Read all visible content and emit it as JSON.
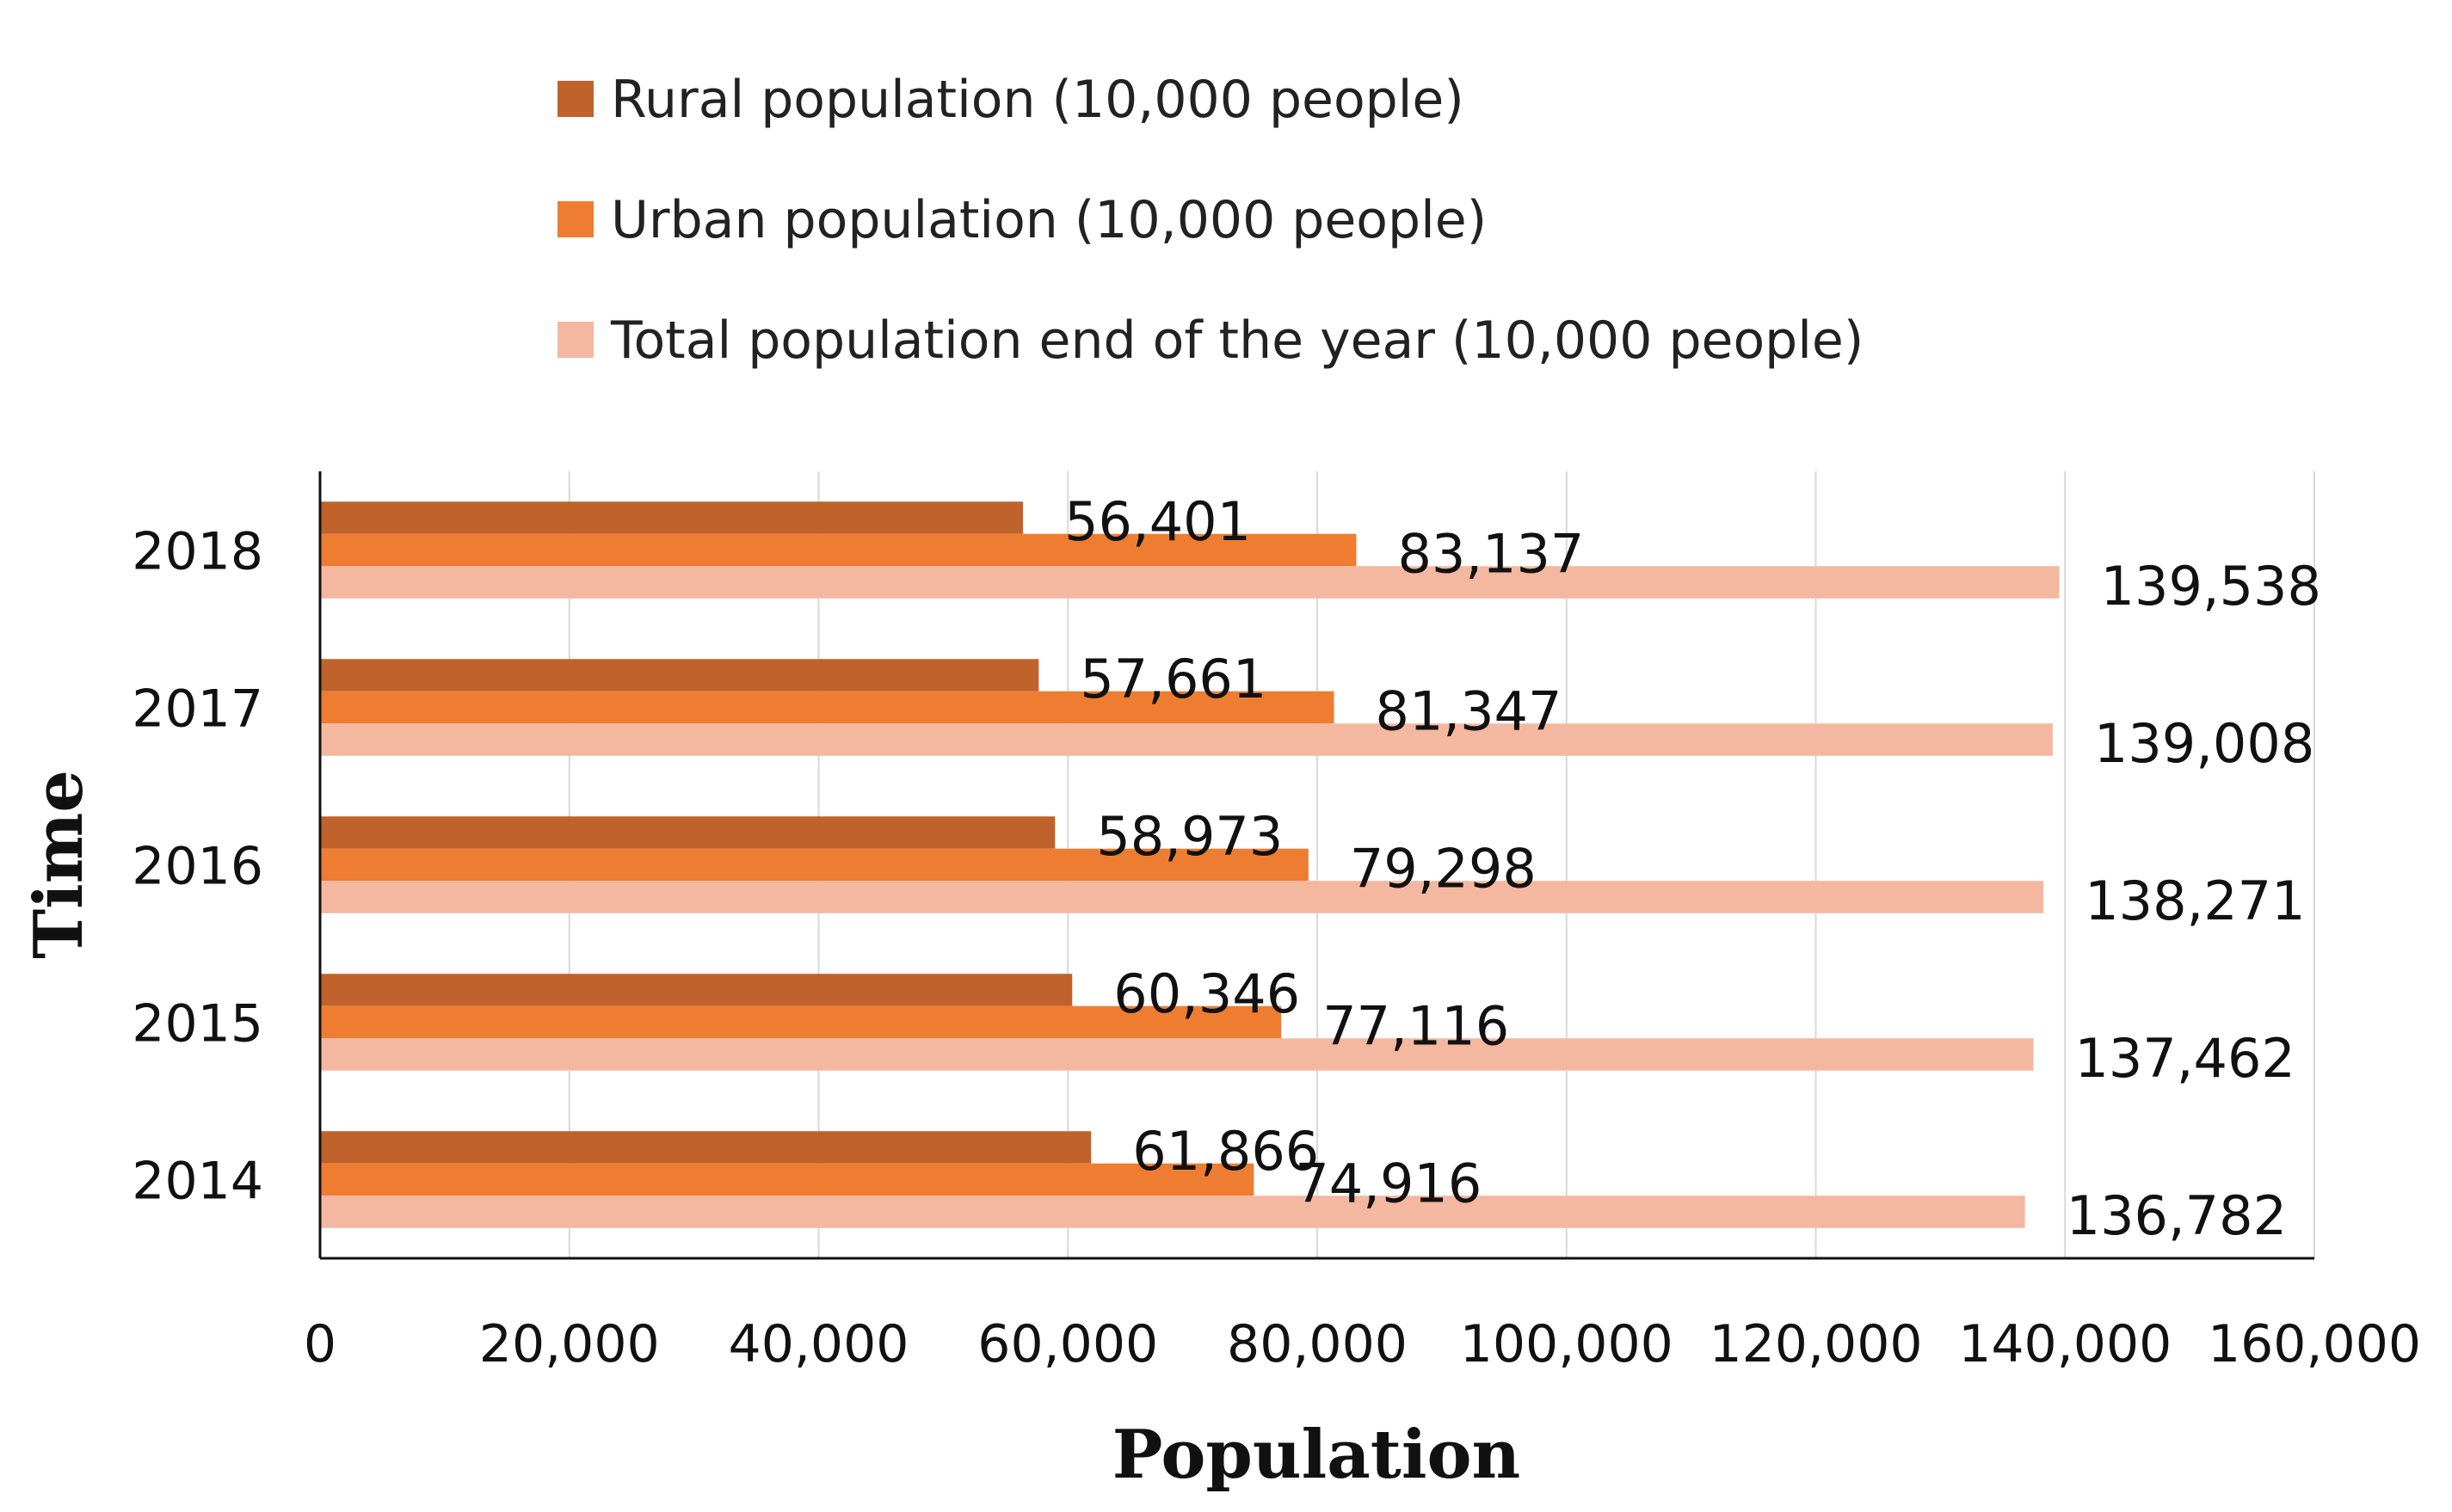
{
  "chart_data": {
    "type": "bar",
    "orientation": "horizontal",
    "categories": [
      "2014",
      "2015",
      "2016",
      "2017",
      "2018"
    ],
    "series": [
      {
        "name": "Rural population (10,000 people)",
        "color": "#C0622B",
        "values": [
          61866,
          60346,
          58973,
          57661,
          56401
        ],
        "labels": [
          "61,866",
          "60,346",
          "58,973",
          "57,661",
          "56,401"
        ]
      },
      {
        "name": "Urban population (10,000 people)",
        "color": "#EE7D31",
        "values": [
          74916,
          77116,
          79298,
          81347,
          83137
        ],
        "labels": [
          "74,916",
          "77,116",
          "79,298",
          "81,347",
          "83,137"
        ]
      },
      {
        "name": "Total population end of the year (10,000 people)",
        "color": "#F4B7A0",
        "values": [
          136782,
          137462,
          138271,
          139008,
          139538
        ],
        "labels": [
          "136,782",
          "137,462",
          "138,271",
          "139,008",
          "139,538"
        ]
      }
    ],
    "xlabel": "Population",
    "ylabel": "Time",
    "xlim": [
      0,
      160000
    ],
    "xticks": [
      0,
      20000,
      40000,
      60000,
      80000,
      100000,
      120000,
      140000,
      160000
    ],
    "xtick_labels": [
      "0",
      "20,000",
      "40,000",
      "60,000",
      "80,000",
      "100,000",
      "120,000",
      "140,000",
      "160,000"
    ],
    "grid": "vertical",
    "legend_position": "top"
  }
}
